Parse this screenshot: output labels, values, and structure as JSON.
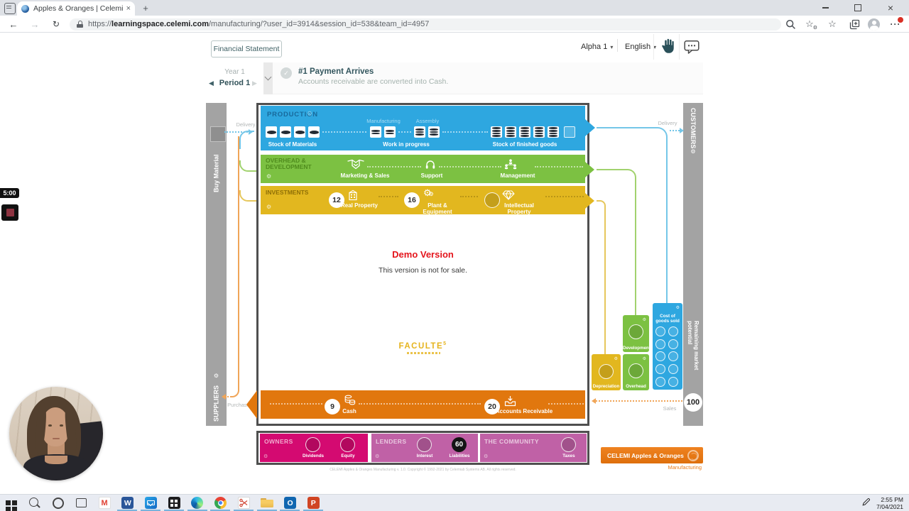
{
  "browser": {
    "tab_title": "Apples & Oranges | Celemi",
    "url": {
      "scheme": "https://",
      "domain": "learningspace.celemi.com",
      "path": "/manufacturing/?user_id=3914&session_id=538&team_id=4957"
    }
  },
  "header": {
    "financial_statement": "Financial Statement",
    "team": "Alpha 1",
    "language": "English"
  },
  "period": {
    "year": "Year 1",
    "period": "Period 1",
    "event_title": "#1 Payment Arrives",
    "event_desc": "Accounts receivable are converted into Cash."
  },
  "production": {
    "title": "PRODUCTION",
    "manufacturing_label": "Manufacturing",
    "assembly_label": "Assembly",
    "stock_materials_label": "Stock of Materials",
    "wip_label": "Work in progress",
    "finished_label": "Stock of finished goods",
    "stock_materials_units": 4,
    "manufacturing_units": 2,
    "assembly_units": 2,
    "finished_units": 5,
    "finished_empty": 1
  },
  "overhead_dev": {
    "title_line1": "OVERHEAD &",
    "title_line2": "DEVELOPMENT",
    "marketing": "Marketing & Sales",
    "support": "Support",
    "management": "Management"
  },
  "investments": {
    "title": "INVESTMENTS",
    "real_property": {
      "value": "12",
      "label": "Real Property"
    },
    "plant_equipment": {
      "value": "16",
      "label": "Plant & Equipment"
    },
    "intellectual_property": {
      "label": "Intellectual Property"
    }
  },
  "demo": {
    "title": "Demo Version",
    "subtitle": "This version is not for sale.",
    "brand": "FACULTE",
    "brand_sup": "5"
  },
  "cash_row": {
    "cash_value": "9",
    "cash_label": "Cash",
    "ar_value": "20",
    "ar_label": "Accounts Receivable"
  },
  "flows": {
    "delivery_left": "Delivery",
    "delivery_right": "Delivery",
    "purchase": "Purchase",
    "sales": "Sales"
  },
  "side_bars": {
    "buy_material": "Buy Material",
    "suppliers": "SUPPLIERS",
    "customers": "CUSTOMERS",
    "market_potential": "Remaining market potential",
    "market_potential_value": "100"
  },
  "cost_boxes": {
    "depreciation": "Depreciation",
    "development": "Development",
    "overhead": "Overhead",
    "cogs": "Cost of goods sold",
    "cogs_slots": 10
  },
  "stakeholders": {
    "owners": {
      "title": "OWNERS",
      "dividends_label": "Dividends",
      "equity_label": "Equity"
    },
    "lenders": {
      "title": "LENDERS",
      "interest_label": "Interest",
      "liabilities_label": "Liabilities",
      "liabilities_value": "60"
    },
    "community": {
      "title": "THE COMMUNITY",
      "taxes_label": "Taxes"
    }
  },
  "footer": {
    "copyright": "CELEMI Apples & Oranges Manufacturing v. 1.0. Copyright © 1992-2021 by Celemiab Systems AB. All rights reserved.",
    "logo": "CELEMI Apples & Oranges",
    "logo_sub": "Manufacturing"
  },
  "recording": {
    "timer": "5:00"
  },
  "taskbar": {
    "time": "2:55 PM",
    "date": "7/04/2021",
    "icons": [
      {
        "id": "start",
        "active": false
      },
      {
        "id": "search",
        "active": false
      },
      {
        "id": "cortana",
        "active": false
      },
      {
        "id": "taskview",
        "active": false
      },
      {
        "id": "gmail",
        "letter": "M",
        "active": false
      },
      {
        "id": "word",
        "letter": "W",
        "active": true
      },
      {
        "id": "mail",
        "active": true
      },
      {
        "id": "store",
        "active": true
      },
      {
        "id": "edge",
        "active": true
      },
      {
        "id": "chrome",
        "active": true
      },
      {
        "id": "snip",
        "active": true
      },
      {
        "id": "explorer",
        "active": true
      },
      {
        "id": "outlook",
        "letter": "O",
        "active": true
      },
      {
        "id": "powerpoint",
        "letter": "P",
        "active": true
      }
    ]
  },
  "colors": {
    "production_blue": "#2ea7e0",
    "overhead_green": "#7cc142",
    "investments_yellow": "#e2b71f",
    "cash_orange": "#e1770e",
    "owners_magenta": "#d40a71",
    "lenders_pink": "#c061a6",
    "bar_gray": "#a3a3a3",
    "board_border": "#4f4f4f",
    "demo_red": "#e4151c",
    "brand_gold": "#e6b41e",
    "logo_orange": "#e87613",
    "flow_blue": "#74c6e8",
    "flow_green": "#a2d26e",
    "flow_yellow": "#e6c75c",
    "flow_orange": "#f0a558",
    "taskbar_underline": "#79b3dc"
  }
}
